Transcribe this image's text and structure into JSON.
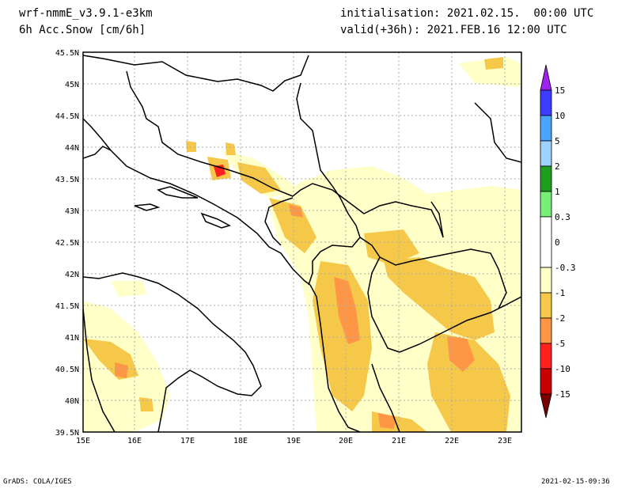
{
  "header": {
    "model": "wrf-nmmE_v3.9.1-e3km",
    "variable": "6h Acc.Snow [cm/6h]",
    "init": "initialisation: 2021.02.15.  00:00 UTC",
    "valid": "valid(+36h): 2021.FEB.16 12:00 UTC"
  },
  "map": {
    "lat_labels": [
      "45.5N",
      "45N",
      "44.5N",
      "44N",
      "43.5N",
      "43N",
      "42.5N",
      "42N",
      "41.5N",
      "41N",
      "40.5N",
      "40N",
      "39.5N"
    ],
    "lon_labels": [
      "15E",
      "16E",
      "17E",
      "18E",
      "19E",
      "20E",
      "21E",
      "22E",
      "23E"
    ]
  },
  "colorbar": {
    "labels": [
      "15",
      "10",
      "5",
      "2",
      "1",
      "0.3",
      "0",
      "-0.3",
      "-1",
      "-2",
      "-5",
      "-10",
      "-15"
    ],
    "colors": [
      "#a020f0",
      "#3c3cff",
      "#4aa5ff",
      "#a0d2ff",
      "#1e9e1e",
      "#78f078",
      "#ffffff",
      "#ffffc8",
      "#f5c84a",
      "#ff9646",
      "#ff2020",
      "#c80000",
      "#780000"
    ]
  },
  "footer": {
    "left": "GrADS: COLA/IGES",
    "right": "2021-02-15-09:36"
  }
}
